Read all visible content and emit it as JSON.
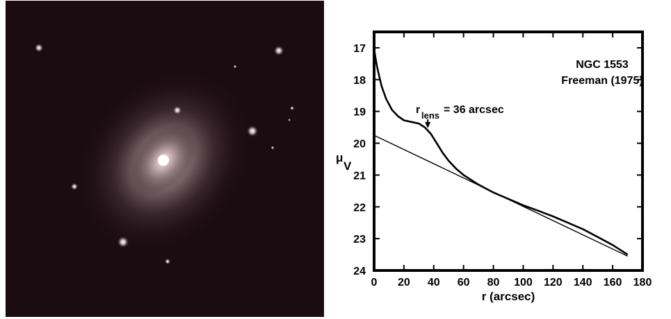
{
  "image_panel": {
    "background": "#1a0c10",
    "galaxy_color": "#f4eeee"
  },
  "chart_data": {
    "type": "line",
    "title_lines": [
      "NGC 1553",
      "Freeman (1975)"
    ],
    "xlabel": "r  (arcsec)",
    "ylabel_main": "μ",
    "ylabel_sub": "V",
    "xlim": [
      0,
      180
    ],
    "ylim": [
      24,
      16.5
    ],
    "y_inverted": true,
    "x_ticks": [
      0,
      20,
      40,
      60,
      80,
      100,
      120,
      140,
      160,
      180
    ],
    "y_ticks": [
      17,
      18,
      19,
      20,
      21,
      22,
      23,
      24
    ],
    "grid": false,
    "series": [
      {
        "x": [
          0,
          2,
          5,
          8,
          12,
          16,
          20,
          25,
          30,
          34,
          38,
          42,
          46,
          50,
          55,
          60,
          70,
          80,
          90,
          100,
          110,
          120,
          130,
          140,
          150,
          160,
          170
        ],
        "y": [
          17.05,
          17.6,
          18.2,
          18.6,
          18.95,
          19.15,
          19.28,
          19.33,
          19.38,
          19.5,
          19.7,
          20.0,
          20.3,
          20.55,
          20.8,
          21.0,
          21.3,
          21.55,
          21.75,
          21.95,
          22.12,
          22.3,
          22.5,
          22.7,
          22.95,
          23.2,
          23.5
        ]
      },
      {
        "x": [
          0,
          170
        ],
        "y": [
          19.75,
          23.55
        ]
      }
    ],
    "annotation": {
      "text_main": "r",
      "text_sub": "lens",
      "text_rest": " = 36 arcsec",
      "arrow_x": 36,
      "arrow_y": 19.55
    }
  }
}
